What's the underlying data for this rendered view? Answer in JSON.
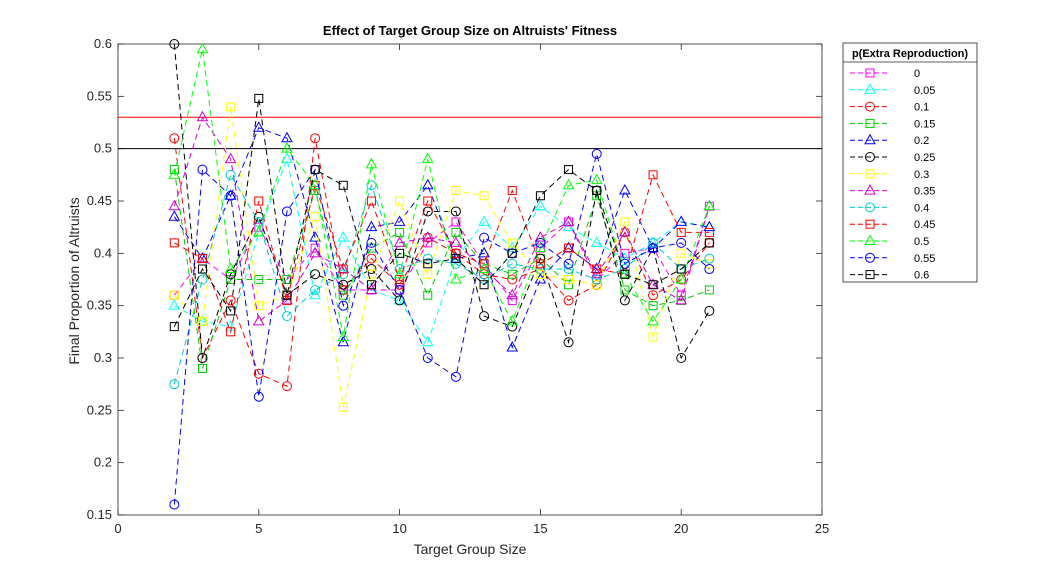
{
  "chart_data": {
    "type": "line",
    "title": "Effect of Target Group Size on Altruists' Fitness",
    "xlabel": "Target Group Size",
    "ylabel": "Final Proportion of Altruists",
    "xlim": [
      0,
      25
    ],
    "ylim": [
      0.15,
      0.6
    ],
    "xticks": [
      0,
      5,
      10,
      15,
      20,
      25
    ],
    "yticks": [
      0.15,
      0.2,
      0.25,
      0.3,
      0.35,
      0.4,
      0.45,
      0.5,
      0.55,
      0.6
    ],
    "grid": false,
    "legend_title": "p(Extra Reproduction)",
    "legend_position": "outside-top-right",
    "x": [
      2,
      3,
      4,
      5,
      6,
      7,
      8,
      9,
      10,
      11,
      12,
      13,
      14,
      15,
      16,
      17,
      18,
      19,
      20,
      21
    ],
    "reference_lines": [
      {
        "y": 0.53,
        "color": "#ff0000"
      },
      {
        "y": 0.5,
        "color": "#000000"
      }
    ],
    "series": [
      {
        "name": "0",
        "color": "#ff00ff",
        "marker": "square",
        "values": [
          0.36,
          0.395,
          0.375,
          0.425,
          0.375,
          0.405,
          0.365,
          0.365,
          0.365,
          0.41,
          0.43,
          0.39,
          0.355,
          0.405,
          0.43,
          0.375,
          0.4,
          0.405,
          0.36,
          0.445
        ]
      },
      {
        "name": "0.05",
        "color": "#00ffff",
        "marker": "triangle",
        "values": [
          0.35,
          0.335,
          0.33,
          0.42,
          0.49,
          0.36,
          0.415,
          0.365,
          0.355,
          0.315,
          0.395,
          0.43,
          0.405,
          0.445,
          0.425,
          0.41,
          0.395,
          0.41,
          0.43,
          0.425
        ]
      },
      {
        "name": "0.1",
        "color": "#ff0000",
        "marker": "circle",
        "values": [
          0.51,
          0.3,
          0.355,
          0.285,
          0.273,
          0.51,
          0.365,
          0.395,
          0.37,
          0.415,
          0.4,
          0.38,
          0.375,
          0.385,
          0.355,
          0.37,
          0.42,
          0.36,
          0.375,
          0.41
        ]
      },
      {
        "name": "0.15",
        "color": "#00cc00",
        "marker": "square",
        "values": [
          0.48,
          0.29,
          0.375,
          0.375,
          0.375,
          0.46,
          0.36,
          0.405,
          0.42,
          0.36,
          0.42,
          0.39,
          0.38,
          0.395,
          0.37,
          0.455,
          0.365,
          0.35,
          0.355,
          0.365
        ]
      },
      {
        "name": "0.2",
        "color": "#0000ff",
        "marker": "triangle",
        "values": [
          0.435,
          0.395,
          0.455,
          0.52,
          0.51,
          0.415,
          0.315,
          0.425,
          0.43,
          0.465,
          0.395,
          0.4,
          0.31,
          0.375,
          0.405,
          0.385,
          0.46,
          0.405,
          0.43,
          0.425
        ]
      },
      {
        "name": "0.25",
        "color": "#000000",
        "marker": "circle",
        "values": [
          0.6,
          0.3,
          0.38,
          0.435,
          0.36,
          0.38,
          0.37,
          0.385,
          0.355,
          0.44,
          0.44,
          0.34,
          0.33,
          0.395,
          0.315,
          0.46,
          0.355,
          0.405,
          0.3,
          0.345
        ]
      },
      {
        "name": "0.3",
        "color": "#ffff00",
        "marker": "square",
        "values": [
          0.36,
          0.335,
          0.54,
          0.35,
          0.36,
          0.435,
          0.253,
          0.38,
          0.45,
          0.38,
          0.46,
          0.455,
          0.41,
          0.38,
          0.375,
          0.37,
          0.43,
          0.32,
          0.4,
          0.39
        ]
      },
      {
        "name": "0.35",
        "color": "#cc00cc",
        "marker": "triangle",
        "values": [
          0.445,
          0.53,
          0.49,
          0.335,
          0.355,
          0.4,
          0.385,
          0.365,
          0.41,
          0.415,
          0.41,
          0.385,
          0.36,
          0.415,
          0.43,
          0.38,
          0.42,
          0.37,
          0.355,
          0.445
        ]
      },
      {
        "name": "0.4",
        "color": "#00cccc",
        "marker": "circle",
        "values": [
          0.275,
          0.375,
          0.475,
          0.43,
          0.34,
          0.365,
          0.38,
          0.465,
          0.385,
          0.395,
          0.39,
          0.375,
          0.39,
          0.385,
          0.385,
          0.375,
          0.385,
          0.41,
          0.385,
          0.395
        ]
      },
      {
        "name": "0.45",
        "color": "#ff0000",
        "marker": "square",
        "values": [
          0.41,
          0.395,
          0.325,
          0.45,
          0.355,
          0.465,
          0.385,
          0.45,
          0.375,
          0.45,
          0.4,
          0.39,
          0.46,
          0.39,
          0.405,
          0.385,
          0.38,
          0.475,
          0.42,
          0.42
        ]
      },
      {
        "name": "0.5",
        "color": "#00ff00",
        "marker": "triangle",
        "values": [
          0.475,
          0.595,
          0.385,
          0.42,
          0.5,
          0.465,
          0.32,
          0.485,
          0.38,
          0.49,
          0.375,
          0.385,
          0.335,
          0.405,
          0.465,
          0.47,
          0.38,
          0.335,
          0.375,
          0.445
        ]
      },
      {
        "name": "0.55",
        "color": "#0000ff",
        "marker": "circle",
        "values": [
          0.16,
          0.48,
          0.455,
          0.263,
          0.44,
          0.48,
          0.35,
          0.41,
          0.365,
          0.3,
          0.282,
          0.415,
          0.4,
          0.41,
          0.39,
          0.495,
          0.39,
          0.405,
          0.41,
          0.385
        ]
      },
      {
        "name": "0.6",
        "color": "#000000",
        "marker": "square",
        "values": [
          0.33,
          0.385,
          0.345,
          0.548,
          0.36,
          0.48,
          0.465,
          0.37,
          0.4,
          0.39,
          0.395,
          0.37,
          0.4,
          0.455,
          0.48,
          0.46,
          0.38,
          0.37,
          0.385,
          0.41
        ]
      }
    ]
  }
}
